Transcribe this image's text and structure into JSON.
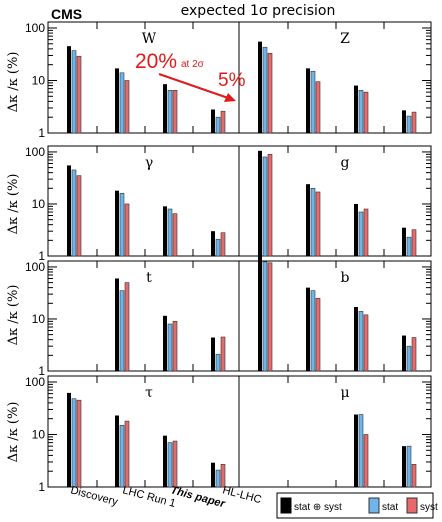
{
  "header": {
    "experiment": "CMS",
    "title": "expected 1σ precision"
  },
  "annotation": {
    "big": "20%",
    "small": "at 2σ",
    "target": "5%"
  },
  "axes": {
    "ylabel": "Δκ /κ (%)",
    "yticks": [
      "1",
      "10",
      "100"
    ],
    "ylim": [
      1,
      130
    ],
    "log": true
  },
  "categories": [
    "Discovery",
    "LHC Run 1",
    "This paper",
    "HL-LHC"
  ],
  "legend": [
    "stat ⊕ syst",
    "stat",
    "syst"
  ],
  "colors": {
    "total": "#000000",
    "stat": "#6fb5ea",
    "syst": "#e8696b",
    "annotation": "#e11a1a"
  },
  "chart_data": {
    "type": "bar",
    "title": "expected 1σ precision",
    "ylabel": "Δκ /κ (%)",
    "yscale": "log",
    "ylim": [
      1,
      130
    ],
    "categories": [
      "Discovery",
      "LHC Run 1",
      "This paper",
      "HL-LHC"
    ],
    "series_names": [
      "stat ⊕ syst",
      "stat",
      "syst"
    ],
    "panels": [
      {
        "label": "W",
        "values": [
          [
            45,
            37,
            29
          ],
          [
            17,
            14,
            10
          ],
          [
            8.5,
            6.5,
            6.5
          ],
          [
            2.8,
            2.0,
            2.6
          ]
        ]
      },
      {
        "label": "Z",
        "values": [
          [
            55,
            43,
            33
          ],
          [
            17,
            15,
            9.5
          ],
          [
            8,
            6.5,
            6
          ],
          [
            2.7,
            2.1,
            2.5
          ]
        ]
      },
      {
        "label": "γ",
        "values": [
          [
            55,
            45,
            35
          ],
          [
            18,
            16,
            10
          ],
          [
            9,
            8,
            6.5
          ],
          [
            3.0,
            2.1,
            2.8
          ]
        ]
      },
      {
        "label": "g",
        "values": [
          [
            105,
            80,
            90
          ],
          [
            24,
            20,
            17
          ],
          [
            10,
            7,
            8
          ],
          [
            3.5,
            2.3,
            3.2
          ]
        ]
      },
      {
        "label": "t",
        "values": [
          [
            null,
            null,
            null
          ],
          [
            60,
            35,
            50
          ],
          [
            11.5,
            8,
            9
          ],
          [
            4.4,
            2.1,
            4.5
          ]
        ]
      },
      {
        "label": "b",
        "values": [
          [
            170,
            125,
            120
          ],
          [
            40,
            35,
            25
          ],
          [
            17,
            14,
            12
          ],
          [
            4.8,
            3.0,
            4.4
          ]
        ]
      },
      {
        "label": "τ",
        "values": [
          [
            62,
            48,
            45
          ],
          [
            23,
            15,
            18
          ],
          [
            9.5,
            7,
            7.5
          ],
          [
            2.9,
            2.1,
            2.7
          ]
        ]
      },
      {
        "label": "μ",
        "values": [
          [
            null,
            null,
            null
          ],
          [
            null,
            null,
            null
          ],
          [
            24,
            24,
            10
          ],
          [
            6,
            6,
            2.7
          ]
        ]
      }
    ]
  }
}
